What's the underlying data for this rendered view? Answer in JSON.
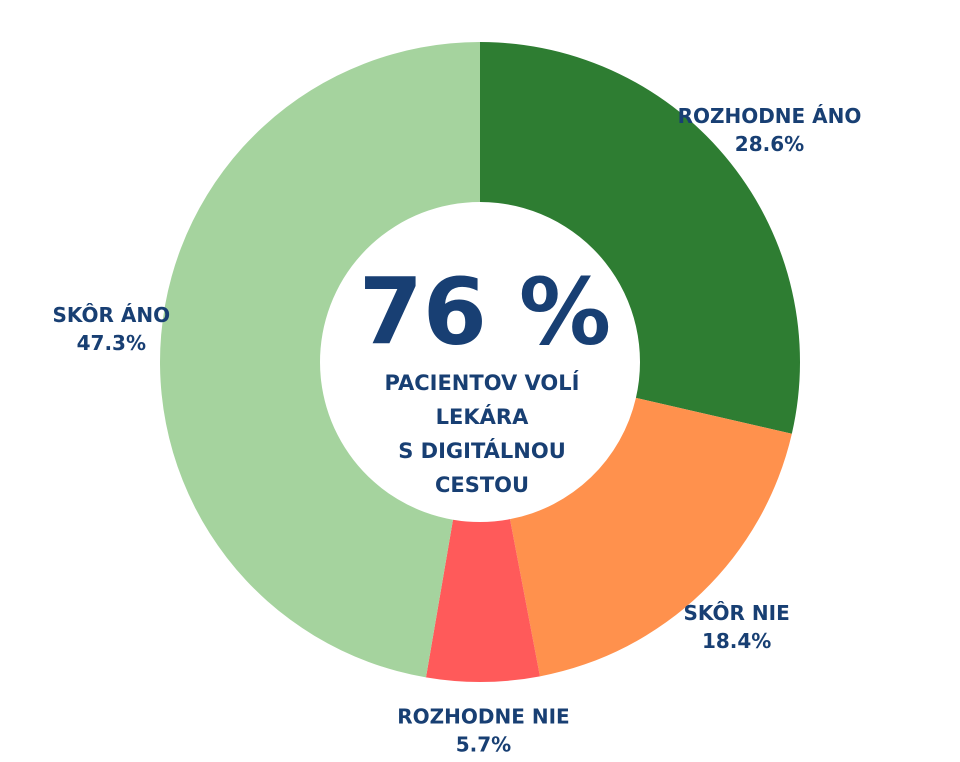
{
  "chart_data": {
    "type": "donut",
    "categories": [
      "ROZHODNE ÁNO",
      "SKÔR NIE",
      "ROZHODNE NIE",
      "SKÔR ÁNO"
    ],
    "values": [
      28.6,
      18.4,
      5.7,
      47.3
    ],
    "value_labels": [
      "28.6%",
      "18.4%",
      "5.7%",
      "47.3%"
    ],
    "colors": [
      "#2e7d32",
      "#ff914d",
      "#ff5a5a",
      "#a5d39e"
    ],
    "center_value": "76 %",
    "center_label": [
      "PACIENTOV VOLÍ",
      "LEKÁRA",
      "S DIGITÁLNOU",
      "CESTOU"
    ]
  }
}
